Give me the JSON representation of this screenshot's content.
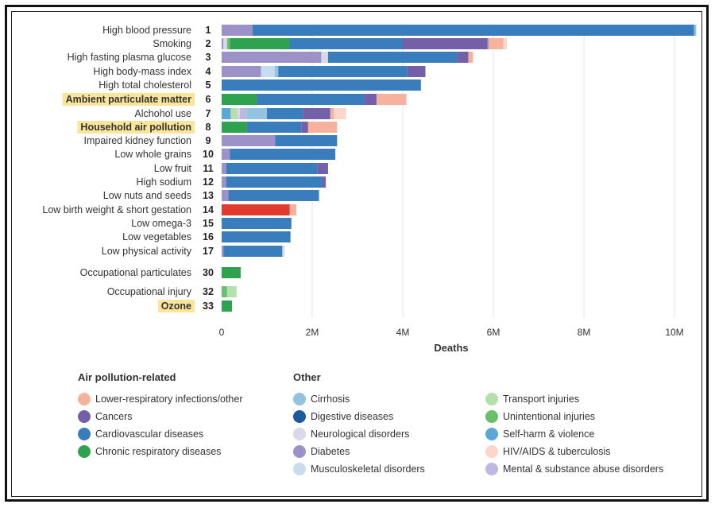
{
  "chart_data": {
    "type": "bar",
    "stacked": true,
    "orientation": "horizontal",
    "xlabel": "Deaths",
    "xlim": [
      0,
      10500000
    ],
    "xticks": [
      0,
      2000000,
      4000000,
      6000000,
      8000000,
      10000000
    ],
    "xtick_labels": [
      "0",
      "2M",
      "4M",
      "6M",
      "8M",
      "10M"
    ],
    "grid": "vertical",
    "highlighted_color": "#fbe59a",
    "cause_colors": {
      "lri": "#f7b29d",
      "cancers": "#7460a9",
      "cardio": "#3a7dbd",
      "chronic_resp": "#2fa24f",
      "cirrhosis": "#93c3e1",
      "digestive": "#1d5a9c",
      "neuro": "#d9d8ea",
      "diabetes": "#9d92c7",
      "musculo": "#c7dcef",
      "transport": "#b5e0ad",
      "unintentional": "#69bf6e",
      "selfharm": "#5aa7d8",
      "hiv_tb": "#fcd7c9",
      "mental": "#bcb8df",
      "neonatal": "#e23a2e"
    },
    "rows": [
      {
        "label": "High blood pressure",
        "rank": "1",
        "highlight": false,
        "segments": [
          {
            "cause": "diabetes",
            "value": 680000
          },
          {
            "cause": "cardio",
            "value": 9750000
          },
          {
            "cause": "cirrhosis",
            "value": 50000
          }
        ]
      },
      {
        "label": "Smoking",
        "rank": "2",
        "highlight": false,
        "segments": [
          {
            "cause": "diabetes",
            "value": 40000
          },
          {
            "cause": "neuro",
            "value": 80000
          },
          {
            "cause": "unintentional",
            "value": 60000
          },
          {
            "cause": "chronic_resp",
            "value": 1320000
          },
          {
            "cause": "cardio",
            "value": 2500000
          },
          {
            "cause": "cancers",
            "value": 1870000
          },
          {
            "cause": "diabetes",
            "value": 30000
          },
          {
            "cause": "lri",
            "value": 320000
          },
          {
            "cause": "hiv_tb",
            "value": 80000
          }
        ]
      },
      {
        "label": "High fasting plasma glucose",
        "rank": "3",
        "highlight": false,
        "segments": [
          {
            "cause": "diabetes",
            "value": 2200000
          },
          {
            "cause": "neuro",
            "value": 150000
          },
          {
            "cause": "cardio",
            "value": 2850000
          },
          {
            "cause": "cancers",
            "value": 250000
          },
          {
            "cause": "lri",
            "value": 100000
          }
        ]
      },
      {
        "label": "High body-mass index",
        "rank": "4",
        "highlight": false,
        "segments": [
          {
            "cause": "diabetes",
            "value": 870000
          },
          {
            "cause": "musculo",
            "value": 300000
          },
          {
            "cause": "cirrhosis",
            "value": 80000
          },
          {
            "cause": "cardio",
            "value": 2850000
          },
          {
            "cause": "cancers",
            "value": 400000
          }
        ]
      },
      {
        "label": "High total cholesterol",
        "rank": "5",
        "highlight": false,
        "segments": [
          {
            "cause": "cardio",
            "value": 4400000
          }
        ]
      },
      {
        "label": "Ambient particulate matter",
        "rank": "6",
        "highlight": true,
        "segments": [
          {
            "cause": "chronic_resp",
            "value": 780000
          },
          {
            "cause": "cardio",
            "value": 2370000
          },
          {
            "cause": "cancers",
            "value": 270000
          },
          {
            "cause": "lri",
            "value": 660000
          }
        ]
      },
      {
        "label": "Alchohol use",
        "rank": "7",
        "highlight": false,
        "segments": [
          {
            "cause": "selfharm",
            "value": 200000
          },
          {
            "cause": "transport",
            "value": 150000
          },
          {
            "cause": "neuro",
            "value": 50000
          },
          {
            "cause": "mental",
            "value": 150000
          },
          {
            "cause": "cirrhosis",
            "value": 450000
          },
          {
            "cause": "cardio",
            "value": 800000
          },
          {
            "cause": "cancers",
            "value": 600000
          },
          {
            "cause": "lri",
            "value": 80000
          },
          {
            "cause": "hiv_tb",
            "value": 270000
          }
        ]
      },
      {
        "label": "Household air pollution",
        "rank": "8",
        "highlight": true,
        "segments": [
          {
            "cause": "chronic_resp",
            "value": 560000
          },
          {
            "cause": "cardio",
            "value": 1200000
          },
          {
            "cause": "cancers",
            "value": 150000
          },
          {
            "cause": "lri",
            "value": 640000
          }
        ]
      },
      {
        "label": "Impaired kidney function",
        "rank": "9",
        "highlight": false,
        "segments": [
          {
            "cause": "diabetes",
            "value": 1180000
          },
          {
            "cause": "cardio",
            "value": 1370000
          }
        ]
      },
      {
        "label": "Low whole grains",
        "rank": "10",
        "highlight": false,
        "segments": [
          {
            "cause": "diabetes",
            "value": 180000
          },
          {
            "cause": "cardio",
            "value": 2330000
          }
        ]
      },
      {
        "label": "Low fruit",
        "rank": "11",
        "highlight": false,
        "segments": [
          {
            "cause": "diabetes",
            "value": 100000
          },
          {
            "cause": "cardio",
            "value": 2010000
          },
          {
            "cause": "cancers",
            "value": 240000
          }
        ]
      },
      {
        "label": "High sodium",
        "rank": "12",
        "highlight": false,
        "segments": [
          {
            "cause": "diabetes",
            "value": 100000
          },
          {
            "cause": "cardio",
            "value": 2120000
          },
          {
            "cause": "cancers",
            "value": 80000
          }
        ]
      },
      {
        "label": "Low nuts and seeds",
        "rank": "13",
        "highlight": false,
        "segments": [
          {
            "cause": "diabetes",
            "value": 150000
          },
          {
            "cause": "cardio",
            "value": 2000000
          }
        ]
      },
      {
        "label": "Low birth weight & short gestation",
        "rank": "14",
        "highlight": false,
        "segments": [
          {
            "cause": "neonatal",
            "value": 1500000
          },
          {
            "cause": "lri",
            "value": 150000
          }
        ]
      },
      {
        "label": "Low omega-3",
        "rank": "15",
        "highlight": false,
        "segments": [
          {
            "cause": "cardio",
            "value": 1540000
          }
        ]
      },
      {
        "label": "Low vegetables",
        "rank": "16",
        "highlight": false,
        "segments": [
          {
            "cause": "cardio",
            "value": 1520000
          }
        ]
      },
      {
        "label": "Low physical activity",
        "rank": "17",
        "highlight": false,
        "segments": [
          {
            "cause": "diabetes",
            "value": 40000
          },
          {
            "cause": "cardio",
            "value": 1300000
          },
          {
            "cause": "neuro",
            "value": 50000
          }
        ]
      },
      {
        "label": "Occupational particulates",
        "rank": "30",
        "highlight": false,
        "segments": [
          {
            "cause": "chronic_resp",
            "value": 420000
          }
        ]
      },
      {
        "label": "Occupational injury",
        "rank": "32",
        "highlight": false,
        "segments": [
          {
            "cause": "unintentional",
            "value": 120000
          },
          {
            "cause": "transport",
            "value": 210000
          }
        ]
      },
      {
        "label": "Ozone",
        "rank": "33",
        "highlight": true,
        "segments": [
          {
            "cause": "chronic_resp",
            "value": 230000
          }
        ]
      }
    ]
  },
  "legend": {
    "group1_title": "Air pollution-related",
    "group2_title": "Other",
    "group1": [
      {
        "label": "Lower-respiratory infections/other",
        "color": "#f7b29d"
      },
      {
        "label": "Cancers",
        "color": "#7460a9"
      },
      {
        "label": "Cardiovascular diseases",
        "color": "#3a7dbd"
      },
      {
        "label": "Chronic respiratory diseases",
        "color": "#2fa24f"
      }
    ],
    "group2": [
      {
        "label": "Cirrhosis",
        "color": "#93c3e1"
      },
      {
        "label": "Digestive diseases",
        "color": "#1d5a9c"
      },
      {
        "label": "Neurological disorders",
        "color": "#d9d8ea"
      },
      {
        "label": "Diabetes",
        "color": "#9d92c7"
      },
      {
        "label": "Musculoskeletal disorders",
        "color": "#c7dcef"
      }
    ],
    "group3": [
      {
        "label": "Transport injuries",
        "color": "#b5e0ad"
      },
      {
        "label": "Unintentional injuries",
        "color": "#69bf6e"
      },
      {
        "label": "Self-harm & violence",
        "color": "#5aa7d8"
      },
      {
        "label": "HIV/AIDS & tuberculosis",
        "color": "#fcd7c9"
      },
      {
        "label": "Mental & substance abuse disorders",
        "color": "#bcb8df"
      }
    ]
  }
}
